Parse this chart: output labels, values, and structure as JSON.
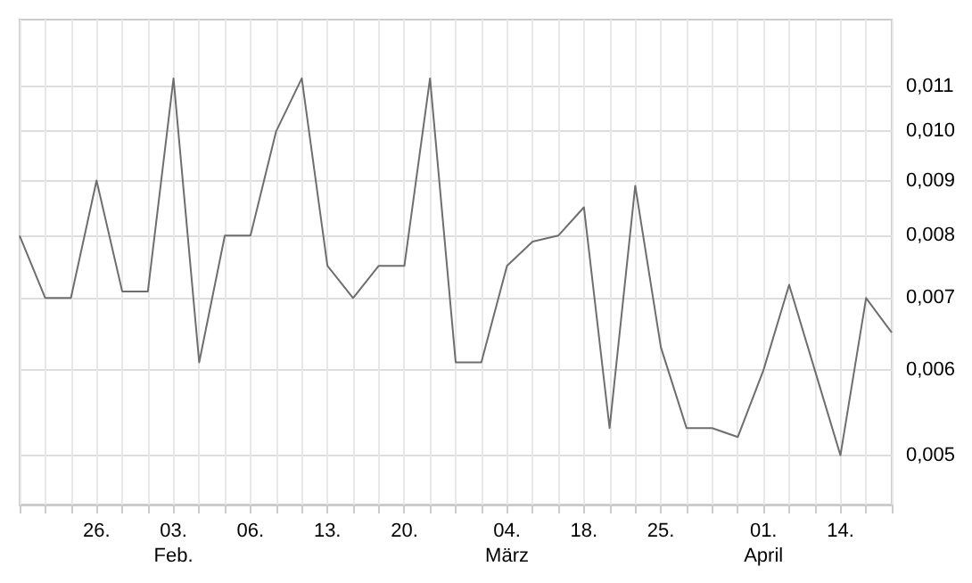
{
  "chart_data": {
    "type": "line",
    "categories": [
      null,
      null,
      null,
      "26.",
      null,
      null,
      "03.\nFeb.",
      null,
      null,
      "06.",
      null,
      null,
      "13.",
      null,
      null,
      "20.",
      null,
      null,
      null,
      "04.\nMärz",
      null,
      null,
      "18.",
      null,
      null,
      "25.",
      null,
      null,
      null,
      "01.\nApril",
      null,
      null,
      "14.",
      null,
      null
    ],
    "series": [
      {
        "color": "#6e6e6e",
        "values": [
          0.008,
          0.007,
          0.007,
          0.009,
          0.0071,
          0.0071,
          0.0112,
          0.0061,
          0.008,
          0.008,
          0.01,
          0.0112,
          0.0075,
          0.007,
          0.0075,
          0.0075,
          0.0112,
          0.0061,
          0.0061,
          0.0075,
          0.0079,
          0.008,
          0.0085,
          0.0053,
          0.0089,
          0.0063,
          0.0053,
          0.0053,
          0.0052,
          0.006,
          0.0072,
          0.006,
          0.005,
          0.007,
          0.0065
        ]
      }
    ],
    "log": "y",
    "ylim": [
      0.0045,
      0.0127
    ],
    "yticks": [
      {
        "value": 0.005,
        "label": "0,005"
      },
      {
        "value": 0.006,
        "label": "0,006"
      },
      {
        "value": 0.007,
        "label": "0,007"
      },
      {
        "value": 0.008,
        "label": "0,008"
      },
      {
        "value": 0.009,
        "label": "0,009"
      },
      {
        "value": 0.01,
        "label": "0,010"
      },
      {
        "value": 0.011,
        "label": "0,011"
      }
    ],
    "grid": true,
    "marker": "none",
    "line_style": "solid"
  }
}
